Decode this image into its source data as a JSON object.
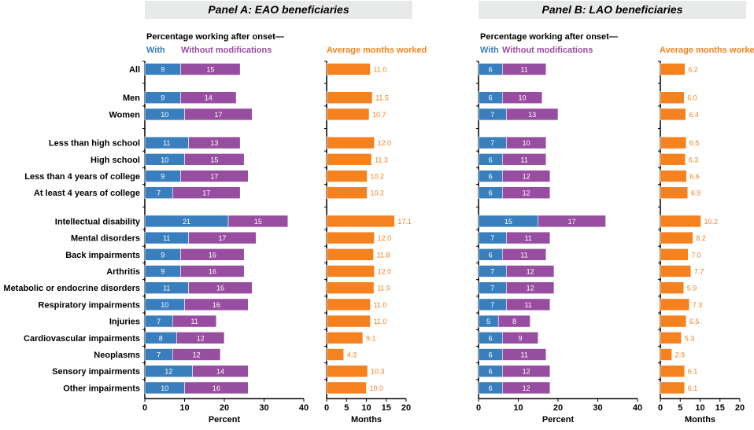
{
  "colors": {
    "with": "#3a7fbd",
    "without": "#984ea0",
    "months": "#f5821f",
    "panel_header_bg": "#e8e9e9"
  },
  "categories": [
    "All",
    "Men",
    "Women",
    "Less than high school",
    "High school",
    "Less than 4 years of college",
    "At least 4 years of college",
    "Intellectual disability",
    "Mental disorders",
    "Back impairments",
    "Arthritis",
    "Metabolic or endocrine disorders",
    "Respiratory impairments",
    "Injuries",
    "Cardiovascular impairments",
    "Neoplasms",
    "Sensory impairments",
    "Other impairments"
  ],
  "category_groups": [
    0,
    1,
    1,
    2,
    2,
    2,
    2,
    3,
    3,
    3,
    3,
    3,
    3,
    3,
    3,
    3,
    3,
    3
  ],
  "chart_data": [
    {
      "type": "bar",
      "orientation": "horizontal",
      "stacked": true,
      "panel_title": "Panel A: EAO beneficiaries",
      "subtitle": "Percentage working after onset—",
      "xlabel": "Percent",
      "xlim": [
        0,
        40
      ],
      "xticks": [
        "0",
        "10",
        "20",
        "30",
        "40"
      ],
      "series": [
        {
          "name": "With",
          "values": [
            9,
            9,
            10,
            11,
            10,
            9,
            7,
            21,
            11,
            9,
            9,
            11,
            10,
            7,
            8,
            7,
            12,
            10
          ]
        },
        {
          "name": "Without modifications",
          "values": [
            15,
            14,
            17,
            13,
            15,
            17,
            17,
            15,
            17,
            16,
            16,
            16,
            16,
            11,
            12,
            12,
            14,
            16
          ]
        }
      ]
    },
    {
      "type": "bar",
      "orientation": "horizontal",
      "title": "Average months worked",
      "xlabel": "Months",
      "xlim": [
        0,
        20
      ],
      "xticks": [
        "0",
        "5",
        "10",
        "15",
        "20"
      ],
      "values": [
        11.0,
        11.5,
        10.7,
        12.0,
        11.3,
        10.2,
        10.2,
        17.1,
        12.0,
        11.8,
        12.0,
        11.9,
        11.0,
        11.0,
        9.1,
        4.3,
        10.3,
        10.0
      ],
      "labels": [
        "11.0",
        "11.5",
        "10.7",
        "12.0",
        "11.3",
        "10.2",
        "10.2",
        "17.1",
        "12.0",
        "11.8",
        "12.0",
        "11.9",
        "11.0",
        "11.0",
        "9.1",
        "4.3",
        "10.3",
        "10.0"
      ]
    },
    {
      "type": "bar",
      "orientation": "horizontal",
      "stacked": true,
      "panel_title": "Panel B: LAO beneficiaries",
      "subtitle": "Percentage working after onset—",
      "xlabel": "Percent",
      "xlim": [
        0,
        40
      ],
      "xticks": [
        "0",
        "10",
        "20",
        "30",
        "40"
      ],
      "series": [
        {
          "name": "With",
          "values": [
            6,
            6,
            7,
            7,
            6,
            6,
            6,
            15,
            7,
            6,
            7,
            7,
            7,
            5,
            6,
            6,
            6,
            6
          ]
        },
        {
          "name": "Without modifications",
          "values": [
            11,
            10,
            13,
            10,
            11,
            12,
            12,
            17,
            11,
            11,
            12,
            12,
            11,
            8,
            9,
            11,
            12,
            12
          ]
        }
      ]
    },
    {
      "type": "bar",
      "orientation": "horizontal",
      "title": "Average months worked",
      "xlabel": "Months",
      "xlim": [
        0,
        20
      ],
      "xticks": [
        "0",
        "5",
        "10",
        "15",
        "20"
      ],
      "values": [
        6.2,
        6.0,
        6.4,
        6.5,
        6.3,
        6.6,
        6.9,
        10.2,
        8.2,
        7.0,
        7.7,
        5.9,
        7.3,
        6.5,
        5.3,
        2.9,
        6.1,
        6.1
      ],
      "labels": [
        "6.2",
        "6.0",
        "6.4",
        "6.5",
        "6.3",
        "6.6",
        "6.9",
        "10.2",
        "8.2",
        "7.0",
        "7.7",
        "5.9",
        "7.3",
        "6.5",
        "5.3",
        "2.9",
        "6.1",
        "6.1"
      ]
    }
  ]
}
